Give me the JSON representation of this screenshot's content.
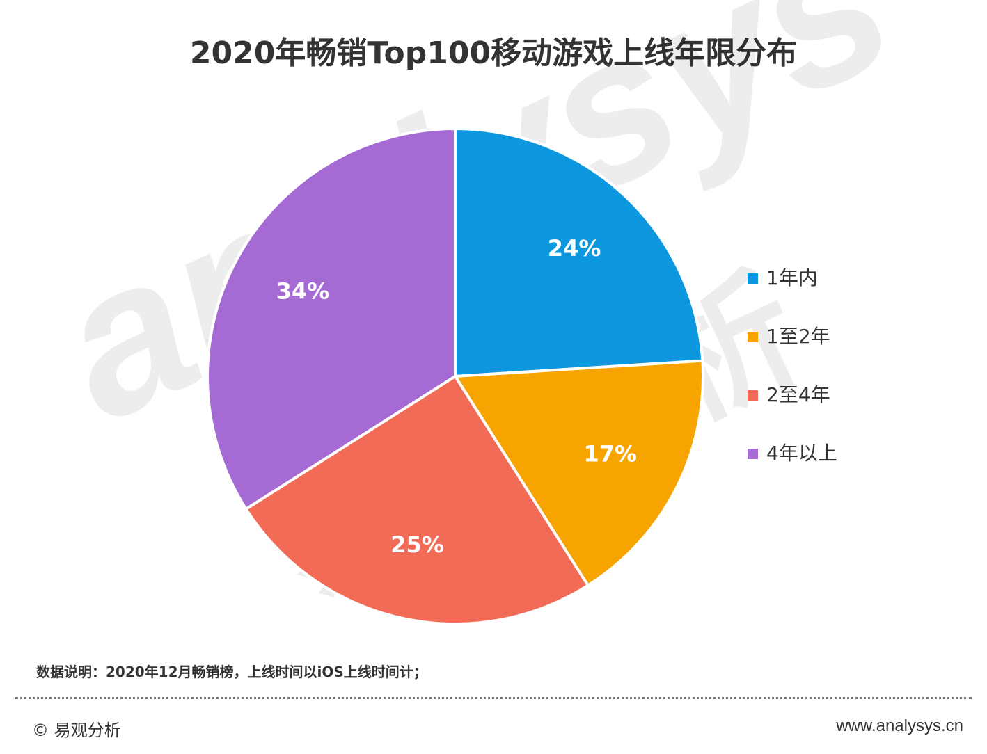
{
  "title": "2020年畅销Top100移动游戏上线年限分布",
  "watermark": {
    "latin": "analysys",
    "cjk": "易观分析"
  },
  "chart_data": {
    "type": "pie",
    "title": "2020年畅销Top100移动游戏上线年限分布",
    "slices": [
      {
        "label": "1年内",
        "value": 24,
        "display": "24%",
        "color": "#0d97df"
      },
      {
        "label": "1至2年",
        "value": 17,
        "display": "17%",
        "color": "#f8a400"
      },
      {
        "label": "2至4年",
        "value": 25,
        "display": "25%",
        "color": "#f26b57"
      },
      {
        "label": "4年以上",
        "value": 34,
        "display": "34%",
        "color": "#a56ad3"
      }
    ],
    "start_angle": "12 o'clock",
    "direction": "clockwise",
    "legend_position": "right"
  },
  "note": "数据说明：2020年12月畅销榜，上线时间以iOS上线时间计；",
  "footer": {
    "copyright": "© 易观分析",
    "url": "www.analysys.cn"
  }
}
